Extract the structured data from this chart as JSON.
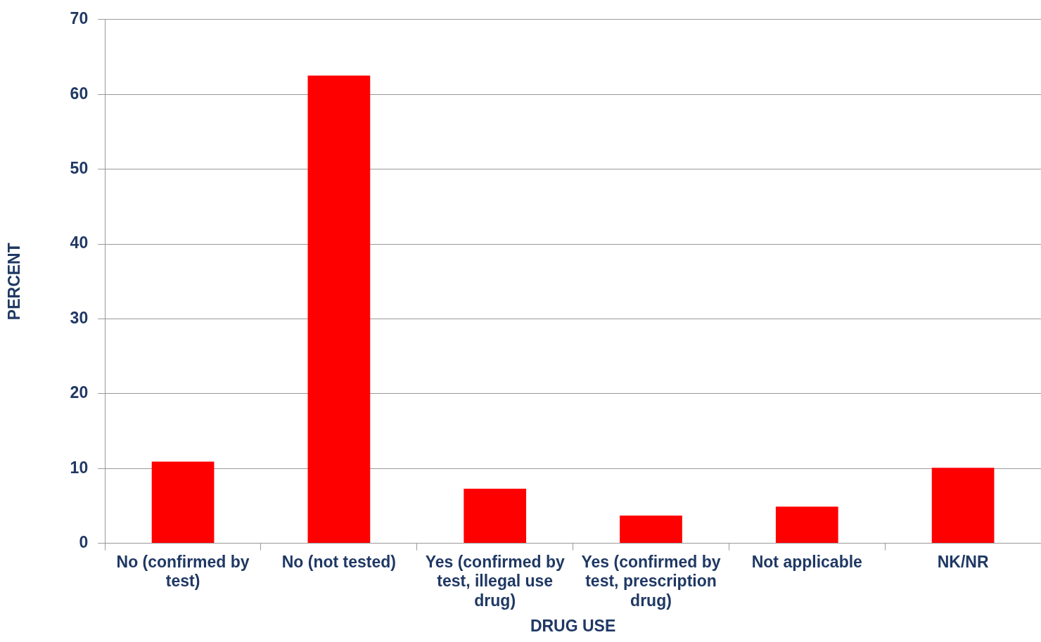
{
  "chart_data": {
    "type": "bar",
    "xlabel": "DRUG USE",
    "ylabel": "PERCENT",
    "categories": [
      "No (confirmed by test)",
      "No (not tested)",
      "Yes (confirmed by test, illegal use drug)",
      "Yes (confirmed by test, prescription drug)",
      "Not applicable",
      "NK/NR"
    ],
    "values": [
      10.9,
      62.5,
      7.3,
      3.7,
      4.9,
      10.1
    ],
    "color": "#ff0000",
    "ylim": [
      0,
      70
    ],
    "yticks": [
      0,
      10,
      20,
      30,
      40,
      50,
      60,
      70
    ],
    "grid": "y",
    "legend": false
  }
}
